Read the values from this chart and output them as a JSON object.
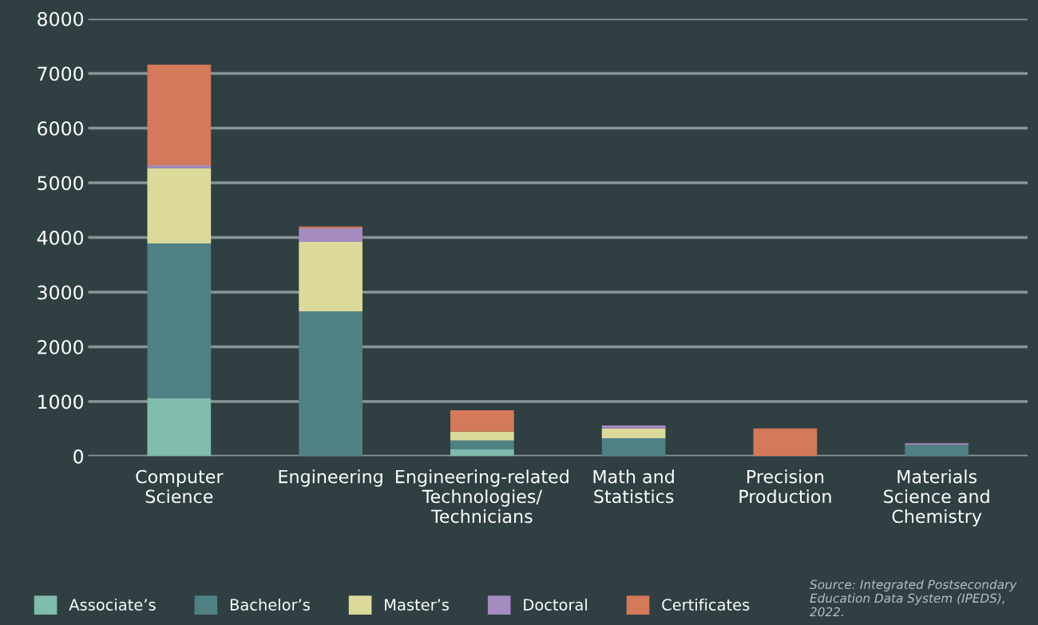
{
  "chart_data": {
    "type": "bar",
    "stacked": true,
    "categories": [
      "Computer\nScience",
      "Engineering",
      "Engineering-related\nTechnologies/\nTechnicians",
      "Math and\nStatistics",
      "Precision\nProduction",
      "Materials\nScience and\nChemistry"
    ],
    "series": [
      {
        "name": "Associate’s",
        "color": "#7fbcad",
        "values": [
          1060,
          0,
          125,
          0,
          0,
          0
        ]
      },
      {
        "name": "Bachelor’s",
        "color": "#4f8184",
        "values": [
          2830,
          2650,
          165,
          330,
          0,
          205
        ]
      },
      {
        "name": "Master’s",
        "color": "#dbda9b",
        "values": [
          1380,
          1270,
          160,
          180,
          0,
          0
        ]
      },
      {
        "name": "Doctoral",
        "color": "#a58bc0",
        "values": [
          50,
          250,
          0,
          55,
          0,
          35
        ]
      },
      {
        "name": "Certificates",
        "color": "#d4795a",
        "values": [
          1840,
          30,
          390,
          0,
          510,
          0
        ]
      }
    ],
    "ylim": [
      0,
      8000
    ],
    "yticks": [
      0,
      1000,
      2000,
      3000,
      4000,
      5000,
      6000,
      7000,
      8000
    ],
    "grid": "y",
    "legend": "bottom",
    "annotations": [
      "Source: Integrated Postsecondary Education Data System (IPEDS), 2022."
    ]
  }
}
